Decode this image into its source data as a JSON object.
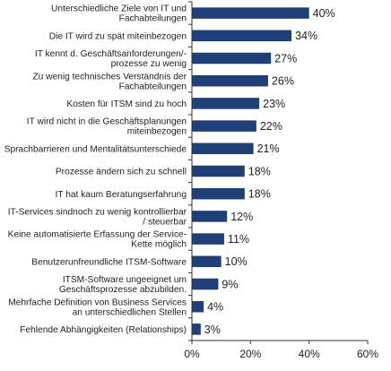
{
  "chart_data": {
    "type": "bar",
    "orientation": "horizontal",
    "title": "",
    "xlabel": "",
    "ylabel": "",
    "xlim": [
      0,
      60
    ],
    "x_ticks": [
      "0%",
      "20%",
      "40%",
      "60%"
    ],
    "x_tick_values": [
      0,
      20,
      40,
      60
    ],
    "grid": false,
    "legend": "none",
    "bar_color": "#1f3f78",
    "value_suffix": "%",
    "categories": [
      "Unterschiedliche Ziele von IT und\nFachabteilungen",
      "Die IT wird  zu spät miteinbezogen",
      "IT kennt d. Geschäftsanforderungen/-\nprozesse zu wenig",
      "Zu wenig technisches Verständnis der\nFachabteilungen",
      "Kosten für ITSM sind zu hoch",
      "IT wird  nicht in die Geschäftsplanungen\nmiteinbezogen",
      "Sprachbarrieren und Mentalitätsunterschiede",
      "Prozesse ändern sich zu schnell",
      "IT hat kaum Beratungserfahrung",
      "IT-Services sindnoch zu wenig kontrollierbar\n/ steuerbar",
      "Keine automatisierte Erfassung der Service-\nKette möglich",
      "Benutzerunfreundliche ITSM-Software",
      "ITSM-Software ungeeignet um\nGeschäftsprozesse abzubilden.",
      "Mehrfache Definition von Business Services\nan unterschiedlichen Stellen",
      "Fehlende Abhängigkeiten (Relationships)"
    ],
    "values": [
      40,
      34,
      27,
      26,
      23,
      22,
      21,
      18,
      18,
      12,
      11,
      10,
      9,
      4,
      3
    ]
  }
}
